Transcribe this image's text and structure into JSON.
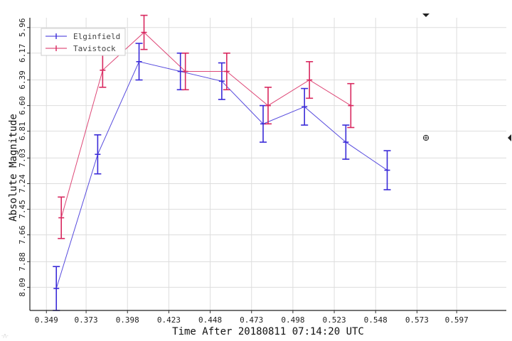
{
  "chart_data": {
    "type": "line",
    "xlabel": "Time After 20180811 07:14:20 UTC",
    "ylabel": "Absolute Magnitude",
    "watermark": "-/\\-",
    "x_ticks": [
      "0.349",
      "0.373",
      "0.398",
      "0.423",
      "0.448",
      "0.473",
      "0.498",
      "0.523",
      "0.548",
      "0.573",
      "0.597"
    ],
    "y_ticks": [
      "5.96",
      "6.17",
      "6.39",
      "6.60",
      "6.81",
      "7.03",
      "7.24",
      "7.45",
      "7.66",
      "7.88",
      "8.09"
    ],
    "xlim": [
      0.339,
      0.627
    ],
    "ylim": [
      8.28,
      5.88
    ],
    "y_inverted": true,
    "grid": true,
    "legend_position": "top-left",
    "series": [
      {
        "name": "Elginfield",
        "color": "#3a2bd8",
        "points": [
          {
            "x": 0.355,
            "y": 8.1,
            "err": 0.18
          },
          {
            "x": 0.38,
            "y": 7.0,
            "err": 0.16
          },
          {
            "x": 0.405,
            "y": 6.24,
            "err": 0.15
          },
          {
            "x": 0.43,
            "y": 6.32,
            "err": 0.15
          },
          {
            "x": 0.455,
            "y": 6.4,
            "err": 0.15
          },
          {
            "x": 0.48,
            "y": 6.75,
            "err": 0.15
          },
          {
            "x": 0.505,
            "y": 6.61,
            "err": 0.15
          },
          {
            "x": 0.53,
            "y": 6.9,
            "err": 0.14
          },
          {
            "x": 0.555,
            "y": 7.13,
            "err": 0.16
          }
        ]
      },
      {
        "name": "Tavistock",
        "color": "#d8285f",
        "points": [
          {
            "x": 0.358,
            "y": 7.52,
            "err": 0.17
          },
          {
            "x": 0.383,
            "y": 6.31,
            "err": 0.14
          },
          {
            "x": 0.408,
            "y": 6.0,
            "err": 0.14
          },
          {
            "x": 0.433,
            "y": 6.32,
            "err": 0.15
          },
          {
            "x": 0.458,
            "y": 6.32,
            "err": 0.15
          },
          {
            "x": 0.483,
            "y": 6.6,
            "err": 0.15
          },
          {
            "x": 0.508,
            "y": 6.39,
            "err": 0.15
          },
          {
            "x": 0.533,
            "y": 6.6,
            "err": 0.18
          }
        ]
      }
    ]
  }
}
